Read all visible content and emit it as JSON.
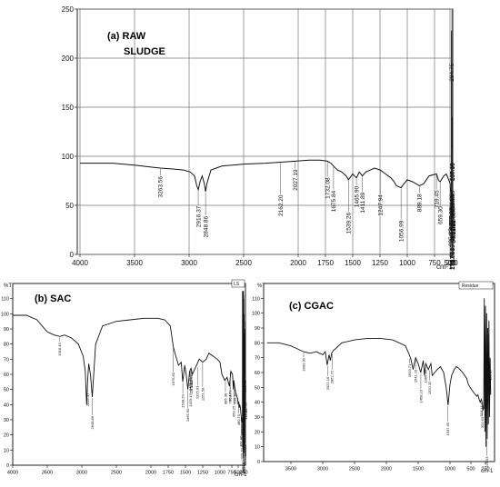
{
  "chart_data": [
    {
      "type": "line",
      "title": "(a) RAW SLUDGE",
      "title_line1": "(a)  RAW",
      "title_line2": "SLUDGE",
      "xlabel": "cm-1",
      "xlim": [
        4000,
        0
      ],
      "ylim": [
        0,
        250
      ],
      "x_ticks": [
        "4000",
        "3500",
        "3000",
        "2500",
        "2000",
        "1750",
        "1500",
        "1250",
        "1000",
        "750",
        "500",
        "250"
      ],
      "y_ticks": [
        "0",
        "50",
        "100",
        "150",
        "200",
        "250"
      ],
      "grid": true,
      "series": [
        {
          "x": [
            4000,
            3700,
            3500,
            3350,
            3263,
            3150,
            3050,
            2990,
            2950,
            2930,
            2916,
            2900,
            2880,
            2860,
            2849,
            2835,
            2800,
            2700,
            2500,
            2300,
            2162,
            2027,
            1900,
            1800,
            1732,
            1700,
            1676,
            1640,
            1600,
            1560,
            1539,
            1500,
            1466,
            1440,
            1412,
            1380,
            1300,
            1248,
            1200,
            1150,
            1120,
            1100,
            1057,
            1030,
            1000,
            950,
            889,
            850,
            800,
            719,
            690,
            660,
            600,
            560,
            520,
            480,
            450,
            420,
            400,
            385,
            360,
            349,
            338,
            326,
            310,
            300,
            296,
            290,
            285,
            280,
            275,
            270,
            265,
            260,
            255,
            250,
            245,
            240,
            235,
            230,
            225,
            220,
            215,
            210,
            205,
            200,
            195,
            190,
            185,
            180,
            175,
            170,
            165,
            160,
            155,
            150,
            145,
            140,
            130
          ],
          "y": [
            93,
            93,
            91,
            89,
            88,
            87,
            86,
            84,
            80,
            70,
            66,
            74,
            80,
            72,
            64,
            73,
            86,
            90,
            92,
            93,
            94,
            95,
            96,
            96,
            95,
            93,
            90,
            86,
            84,
            80,
            76,
            82,
            78,
            84,
            80,
            84,
            88,
            86,
            82,
            78,
            74,
            70,
            68,
            72,
            76,
            74,
            70,
            72,
            80,
            82,
            76,
            74,
            80,
            82,
            76,
            72,
            68,
            64,
            66,
            60,
            58,
            56,
            60,
            62,
            58,
            65,
            228,
            40,
            90,
            30,
            120,
            20,
            70,
            35,
            140,
            15,
            95,
            25,
            110,
            10,
            105,
            35,
            90,
            20,
            100,
            40,
            85,
            25,
            110,
            30,
            90,
            22,
            75,
            45,
            95,
            30,
            80,
            50,
            60
          ]
        }
      ],
      "peak_labels": [
        "3263.56",
        "2916.37",
        "2848.86",
        "2162.20",
        "2027.19",
        "1732.08",
        "1675.84",
        "1539.26",
        "1465.90",
        "1411.89",
        "1247.94",
        "1056.99",
        "889.18",
        "719.45",
        "659.30",
        "385.37",
        "349.12",
        "337.54",
        "325.97",
        "294.75",
        "252.08",
        "235.65",
        "196.61",
        "156.93",
        "135.53",
        "117.32",
        "109.00",
        "95.87",
        "86.54",
        "73.90",
        "63.51",
        "54.27",
        "264.25",
        "250.75",
        "219.89",
        "214.11",
        "198.67",
        "187.10",
        "177.45",
        "171.66",
        "150.45",
        "92.88",
        "24.1"
      ]
    },
    {
      "type": "line",
      "title": "(b) SAC",
      "xlabel": "cm-1",
      "ylabel": "%T",
      "legend": "LS",
      "xlim": [
        4000,
        150
      ],
      "ylim": [
        0,
        120
      ],
      "x_ticks": [
        "4000",
        "3500",
        "3000",
        "2500",
        "2000",
        "1750",
        "1500",
        "1250",
        "1000",
        "750",
        "500",
        "250"
      ],
      "y_ticks": [
        "0",
        "10",
        "20",
        "30",
        "40",
        "50",
        "60",
        "70",
        "80",
        "90",
        "100",
        "110"
      ],
      "grid": false,
      "series": [
        {
          "x": [
            4000,
            3800,
            3650,
            3500,
            3400,
            3318,
            3250,
            3150,
            3050,
            2980,
            2950,
            2930,
            2916,
            2900,
            2875,
            2849,
            2830,
            2800,
            2700,
            2500,
            2300,
            2100,
            2000,
            1900,
            1800,
            1720,
            1675,
            1640,
            1600,
            1560,
            1540,
            1510,
            1490,
            1466,
            1440,
            1420,
            1400,
            1380,
            1350,
            1300,
            1250,
            1200,
            1160,
            1100,
            1040,
            1000,
            960,
            900,
            850,
            800,
            770,
            720,
            690,
            670,
            640,
            600,
            560,
            520,
            500,
            470,
            450,
            430,
            400,
            380,
            360,
            340,
            320,
            305,
            300,
            295,
            290,
            285,
            280,
            275,
            270,
            265,
            260,
            255,
            250,
            245,
            240,
            235,
            230,
            225,
            220,
            215,
            210,
            205,
            200,
            190,
            180,
            170,
            160
          ],
          "y": [
            99,
            99,
            96,
            88,
            86,
            85,
            86,
            84,
            80,
            72,
            62,
            40,
            56,
            67,
            60,
            45,
            58,
            80,
            92,
            95,
            96,
            97,
            97,
            97,
            96,
            92,
            78,
            72,
            66,
            68,
            55,
            66,
            60,
            50,
            62,
            64,
            60,
            62,
            65,
            70,
            68,
            70,
            74,
            72,
            70,
            68,
            60,
            56,
            58,
            52,
            62,
            60,
            50,
            56,
            52,
            48,
            46,
            44,
            40,
            42,
            38,
            40,
            38,
            35,
            32,
            30,
            28,
            32,
            115,
            20,
            110,
            10,
            115,
            12,
            110,
            5,
            115,
            15,
            112,
            8,
            110,
            20,
            100,
            10,
            95,
            25,
            90,
            15,
            80,
            30,
            60,
            40,
            50
          ]
        }
      ],
      "peak_labels": [
        "3318.49",
        "2916.37",
        "2848.86",
        "1676.80",
        "1435.36",
        "1538.29",
        "1465.90",
        "1429.47",
        "1413.61",
        "1415.44",
        "1325.93",
        "1251.58",
        "787.44",
        "885.38",
        "783.70",
        "669.25",
        "630.30",
        "480.70",
        "361.90",
        "329.70",
        "312.90",
        "276.42",
        "264.25",
        "246.75",
        "237.32",
        "221.82",
        "207.36",
        "190.30",
        "183.46",
        "163.88",
        "148.16"
      ]
    },
    {
      "type": "line",
      "title": "(c) CGAC",
      "xlabel": "cm-1",
      "ylabel": "%T",
      "legend": "Residue",
      "xlim": [
        4000,
        150
      ],
      "ylim": [
        0,
        120
      ],
      "x_ticks": [
        "3500",
        "3000",
        "2500",
        "2000",
        "1500",
        "1000",
        "500",
        "250"
      ],
      "y_ticks": [
        "0",
        "10",
        "20",
        "30",
        "40",
        "50",
        "60",
        "70",
        "80",
        "90",
        "100",
        "110"
      ],
      "grid": false,
      "series": [
        {
          "x": [
            4000,
            3800,
            3600,
            3400,
            3300,
            3200,
            3100,
            3000,
            2960,
            2930,
            2900,
            2880,
            2860,
            2830,
            2800,
            2700,
            2500,
            2300,
            2100,
            1900,
            1700,
            1620,
            1580,
            1540,
            1500,
            1460,
            1420,
            1400,
            1380,
            1340,
            1300,
            1280,
            1240,
            1200,
            1150,
            1100,
            1060,
            1030,
            1000,
            960,
            900,
            850,
            800,
            760,
            700,
            650,
            600,
            560,
            520,
            480,
            440,
            400,
            380,
            360,
            340,
            320,
            300,
            290,
            280,
            270,
            260,
            250,
            240,
            230,
            220,
            210,
            200,
            190,
            180,
            170,
            160
          ],
          "y": [
            80,
            80,
            78,
            76,
            74,
            73,
            74,
            72,
            74,
            65,
            72,
            68,
            73,
            75,
            76,
            80,
            82,
            83,
            83,
            82,
            78,
            70,
            62,
            70,
            66,
            60,
            68,
            58,
            66,
            62,
            66,
            58,
            60,
            62,
            64,
            60,
            50,
            38,
            52,
            58,
            62,
            64,
            63,
            62,
            60,
            58,
            56,
            52,
            50,
            48,
            46,
            44,
            45,
            42,
            40,
            42,
            38,
            35,
            36,
            110,
            20,
            105,
            10,
            100,
            15,
            90,
            25,
            95,
            30,
            70,
            45
          ]
        }
      ],
      "peak_labels": [
        "3300.30",
        "2922.16",
        "2852.72",
        "1633.71",
        "1541.19",
        "1458.23",
        "1385.93",
        "1320.32",
        "1037.65",
        "316.14",
        "302.63",
        "223.53",
        "214.19",
        "165.47"
      ]
    }
  ]
}
